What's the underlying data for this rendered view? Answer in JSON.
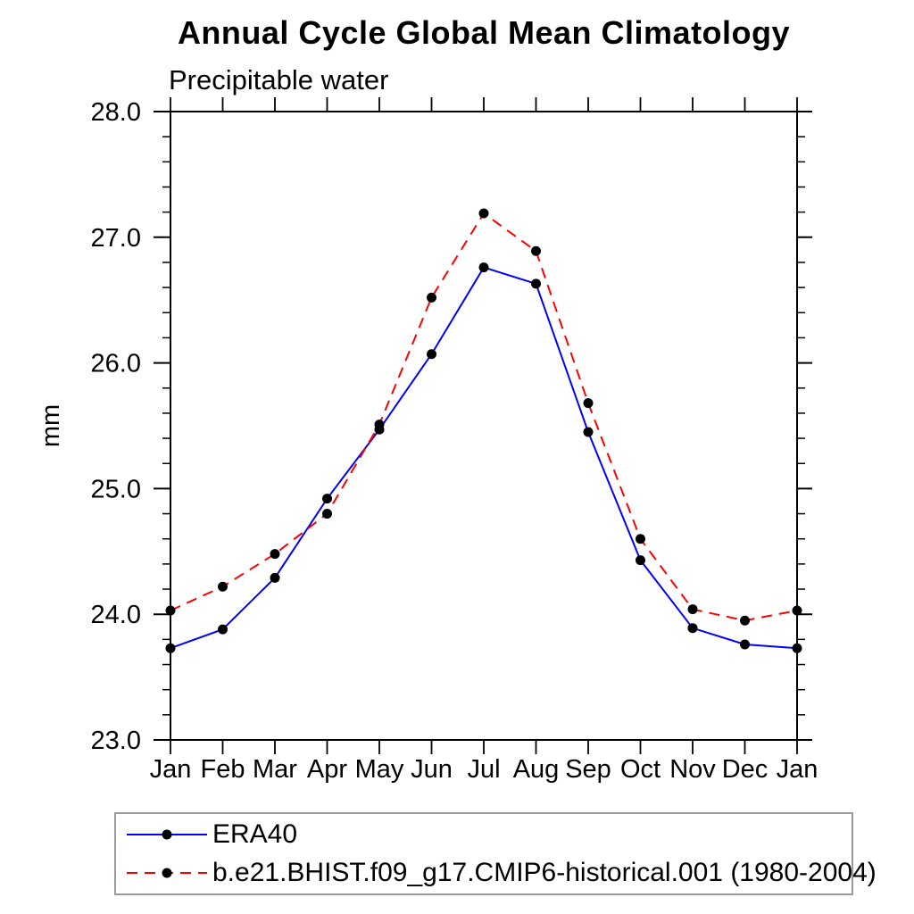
{
  "chart_data": {
    "type": "line",
    "title": "Annual Cycle Global Mean Climatology",
    "subtitle": "Precipitable water",
    "ylabel": "mm",
    "xlabel": "",
    "ylim": [
      23.0,
      28.0
    ],
    "ytick_labels": [
      "23.0",
      "24.0",
      "25.0",
      "26.0",
      "27.0",
      "28.0"
    ],
    "ytick_values": [
      23.0,
      24.0,
      25.0,
      26.0,
      27.0,
      28.0
    ],
    "ytick_minor_step": 0.2,
    "grid": false,
    "legend_position": "bottom-left",
    "categories": [
      "Jan",
      "Feb",
      "Mar",
      "Apr",
      "May",
      "Jun",
      "Jul",
      "Aug",
      "Sep",
      "Oct",
      "Nov",
      "Dec",
      "Jan"
    ],
    "series": [
      {
        "name": "ERA40",
        "color": "#0000ff",
        "line_style": "solid",
        "marker": "filled-circle",
        "marker_color": "#000000",
        "values": [
          23.73,
          23.88,
          24.29,
          24.92,
          25.47,
          26.07,
          26.76,
          26.63,
          25.45,
          24.43,
          23.89,
          23.76,
          23.73
        ]
      },
      {
        "name": "b.e21.BHIST.f09_g17.CMIP6-historical.001 (1980-2004)",
        "color": "#ff0000",
        "line_style": "dashed",
        "marker": "filled-circle",
        "marker_color": "#000000",
        "values": [
          24.03,
          24.22,
          24.48,
          24.8,
          25.51,
          26.52,
          27.19,
          26.89,
          25.68,
          24.6,
          24.04,
          23.95,
          24.03
        ]
      }
    ]
  }
}
